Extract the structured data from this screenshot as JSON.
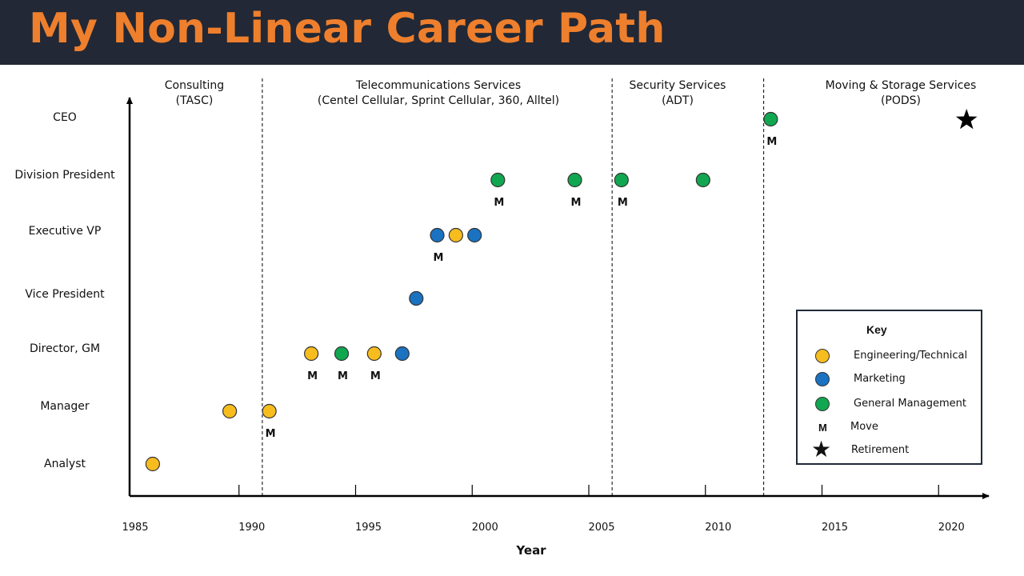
{
  "title": "My Non-Linear Career Path",
  "colors": {
    "header_bg": "#222835",
    "title": "#ee7f2d",
    "engineering": "#f7bd1e",
    "marketing": "#1a72c1",
    "general_management": "#11a751"
  },
  "chart_data": {
    "type": "scatter",
    "xlabel": "Year",
    "ylabel": "",
    "xlim": [
      1985,
      2023
    ],
    "x_ticks": [
      1985,
      1990,
      1995,
      2000,
      2005,
      2010,
      2015,
      2020
    ],
    "y_categories": [
      "Analyst",
      "Manager",
      "Director, GM",
      "Vice President",
      "Executive VP",
      "Division President",
      "CEO"
    ],
    "eras": [
      {
        "line1": "Consulting",
        "line2": "(TASC)",
        "start": 1985,
        "end": 1991
      },
      {
        "line1": "Telecommunications Services",
        "line2": "(Centel Cellular, Sprint Cellular, 360, Alltel)",
        "start": 1991,
        "end": 2006
      },
      {
        "line1": "Security Services",
        "line2": "(ADT)",
        "start": 2006,
        "end": 2012.5
      },
      {
        "line1": "Moving & Storage Services",
        "line2": "(PODS)",
        "start": 2012.5,
        "end": 2023
      }
    ],
    "dividers": [
      1991,
      2006,
      2012.5
    ],
    "series": [
      {
        "name": "Engineering/Technical",
        "points": [
          {
            "x": 1986.3,
            "y": "Analyst",
            "move": false
          },
          {
            "x": 1989.6,
            "y": "Manager",
            "move": false
          },
          {
            "x": 1991.3,
            "y": "Manager",
            "move": true
          },
          {
            "x": 1993.1,
            "y": "Director, GM",
            "move": true
          },
          {
            "x": 1995.8,
            "y": "Director, GM",
            "move": true
          },
          {
            "x": 1999.3,
            "y": "Executive VP",
            "move": false
          }
        ]
      },
      {
        "name": "Marketing",
        "points": [
          {
            "x": 1997.0,
            "y": "Director, GM",
            "move": false
          },
          {
            "x": 1997.6,
            "y": "Vice President",
            "move": false
          },
          {
            "x": 1998.5,
            "y": "Executive VP",
            "move": true
          },
          {
            "x": 2000.1,
            "y": "Executive VP",
            "move": false
          }
        ]
      },
      {
        "name": "General Management",
        "points": [
          {
            "x": 1994.4,
            "y": "Director, GM",
            "move": true
          },
          {
            "x": 2001.1,
            "y": "Division President",
            "move": true
          },
          {
            "x": 2004.4,
            "y": "Division President",
            "move": true
          },
          {
            "x": 2006.4,
            "y": "Division President",
            "move": true
          },
          {
            "x": 2009.9,
            "y": "Division President",
            "move": false
          },
          {
            "x": 2012.8,
            "y": "CEO",
            "move": true
          }
        ]
      }
    ],
    "retirement": {
      "x": 2021.2,
      "y": "CEO"
    },
    "move_marker": "M"
  },
  "legend": {
    "title": "Key",
    "items": [
      {
        "label": "Engineering/Technical",
        "symbol": "circle",
        "color": "#f7bd1e"
      },
      {
        "label": "Marketing",
        "symbol": "circle",
        "color": "#1a72c1"
      },
      {
        "label": "General Management",
        "symbol": "circle",
        "color": "#11a751"
      },
      {
        "label": "Move",
        "symbol": "M"
      },
      {
        "label": "Retirement",
        "symbol": "star-icon"
      }
    ]
  }
}
